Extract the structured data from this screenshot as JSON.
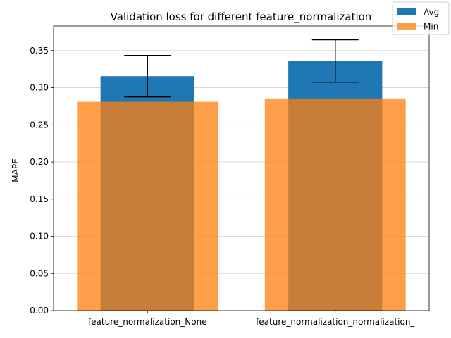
{
  "chart_data": {
    "type": "bar",
    "title": "Validation loss for different feature_normalization",
    "xlabel": "",
    "ylabel": "MAPE",
    "categories": [
      "feature_normalization_None",
      "feature_normalization_normalization_"
    ],
    "series": [
      {
        "name": "Avg",
        "color": "#1f77b4",
        "values": [
          0.3155,
          0.336
        ],
        "error": [
          0.028,
          0.0285
        ]
      },
      {
        "name": "Min",
        "color": "#ff7f0e",
        "opacity": 0.75,
        "values": [
          0.281,
          0.2855
        ]
      }
    ],
    "ylim": [
      0,
      0.383
    ],
    "yticks": [
      "0.00",
      "0.05",
      "0.10",
      "0.15",
      "0.20",
      "0.25",
      "0.30",
      "0.35"
    ],
    "grid": "horizontal",
    "legend_position": "top-right"
  }
}
